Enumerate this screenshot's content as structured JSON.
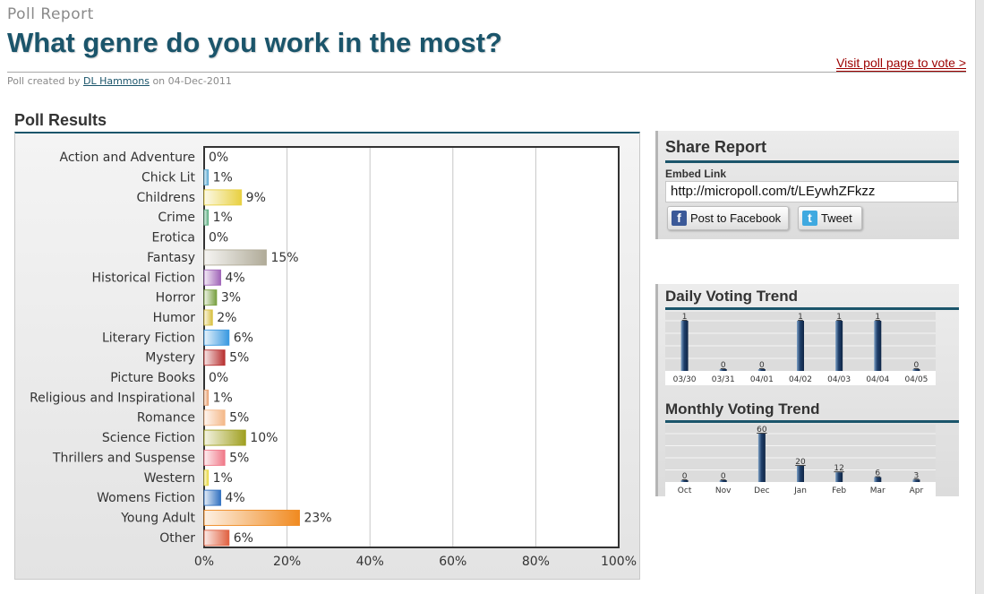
{
  "header": {
    "subtitle": "Poll Report",
    "title": "What genre do you work in the most?",
    "visit_link": "Visit poll page to vote >",
    "created_prefix": "Poll created by",
    "creator": "DL Hammons",
    "created_on": "on 04-Dec-2011"
  },
  "results": {
    "title": "Poll Results"
  },
  "share": {
    "title": "Share Report",
    "embed_label": "Embed Link",
    "embed_url": "http://micropoll.com/t/LEywhZFkzz",
    "facebook_label": "Post to Facebook",
    "facebook_icon": "facebook-icon",
    "tweet_label": "Tweet",
    "tweet_icon": "twitter-icon"
  },
  "daily": {
    "title": "Daily Voting Trend"
  },
  "monthly": {
    "title": "Monthly Voting Trend"
  },
  "colors": {
    "accent": "#1b556b",
    "link": "#9c0000"
  },
  "chart_data": [
    {
      "type": "bar",
      "orientation": "horizontal",
      "categories": [
        "Action and Adventure",
        "Chick Lit",
        "Childrens",
        "Crime",
        "Erotica",
        "Fantasy",
        "Historical Fiction",
        "Horror",
        "Humor",
        "Literary Fiction",
        "Mystery",
        "Picture Books",
        "Religious and Inspirational",
        "Romance",
        "Science Fiction",
        "Thrillers and Suspense",
        "Western",
        "Womens Fiction",
        "Young Adult",
        "Other"
      ],
      "values": [
        0,
        1,
        9,
        1,
        0,
        15,
        4,
        3,
        2,
        6,
        5,
        0,
        1,
        5,
        10,
        5,
        1,
        4,
        23,
        6
      ],
      "value_labels": [
        "0%",
        "1%",
        "9%",
        "1%",
        "0%",
        "15%",
        "4%",
        "3%",
        "2%",
        "6%",
        "5%",
        "0%",
        "1%",
        "5%",
        "10%",
        "5%",
        "1%",
        "4%",
        "23%",
        "6%"
      ],
      "bar_colors": [
        "#cccccc",
        "#5aa8d0",
        "#e8d040",
        "#5cae80",
        "#cccccc",
        "#b0ab98",
        "#a064b8",
        "#78a040",
        "#d8c040",
        "#3898e0",
        "#b83030",
        "#cccccc",
        "#e8a070",
        "#f4b888",
        "#a0a020",
        "#f07888",
        "#e8d840",
        "#3070c0",
        "#f08a20",
        "#e06040"
      ],
      "xticks": [
        "0%",
        "20%",
        "40%",
        "60%",
        "80%",
        "100%"
      ],
      "xlim": [
        0,
        100
      ],
      "grid": true
    },
    {
      "type": "bar",
      "title": "Daily Voting Trend",
      "categories": [
        "03/30",
        "03/31",
        "04/01",
        "04/02",
        "04/03",
        "04/04",
        "04/05"
      ],
      "values": [
        1,
        0,
        0,
        1,
        1,
        1,
        0
      ],
      "ylim": [
        0,
        1
      ]
    },
    {
      "type": "bar",
      "title": "Monthly Voting Trend",
      "categories": [
        "Oct",
        "Nov",
        "Dec",
        "Jan",
        "Feb",
        "Mar",
        "Apr"
      ],
      "values": [
        0,
        0,
        60,
        20,
        12,
        6,
        3
      ],
      "ylim": [
        0,
        60
      ]
    }
  ]
}
